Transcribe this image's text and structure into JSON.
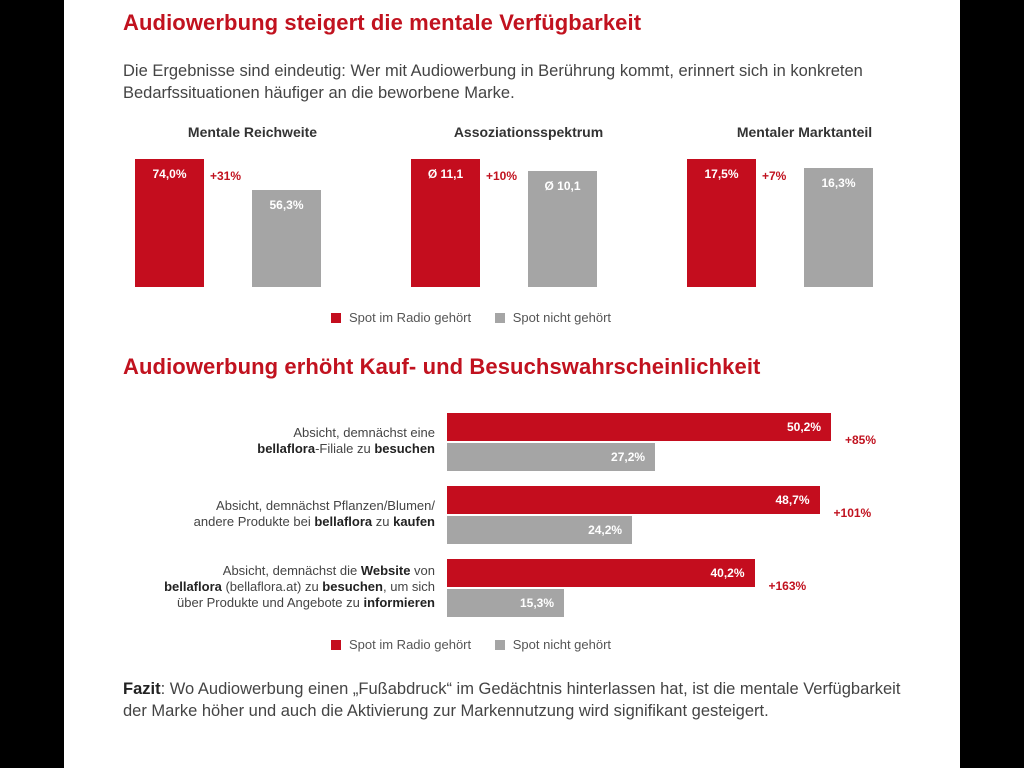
{
  "section1": {
    "title": "Audiowerbung steigert die mentale Verfügbarkeit",
    "intro": "Die Ergebnisse sind eindeutig: Wer mit Audiowerbung in Berührung kommt, erinnert sich in konkreten Bedarfssituationen häufiger an die beworbene Marke."
  },
  "section2": {
    "title": "Audiowerbung erhöht Kauf- und Besuchswahrscheinlichkeit"
  },
  "legend": {
    "heard": "Spot im Radio gehört",
    "not_heard": "Spot nicht gehört"
  },
  "colors": {
    "accent": "#c1121f",
    "red": "#c40d1e",
    "grey": "#a5a5a5"
  },
  "chart_data": [
    {
      "type": "bar",
      "title": "Mentale Reichweite",
      "categories": [
        "Spot im Radio gehört",
        "Spot nicht gehört"
      ],
      "values": [
        74.0,
        56.3
      ],
      "value_labels": [
        "74,0%",
        "56,3%"
      ],
      "delta": "+31%"
    },
    {
      "type": "bar",
      "title": "Assoziationsspektrum",
      "categories": [
        "Spot im Radio gehört",
        "Spot nicht gehört"
      ],
      "values": [
        11.1,
        10.1
      ],
      "value_labels": [
        "Ø 11,1",
        "Ø 10,1"
      ],
      "delta": "+10%"
    },
    {
      "type": "bar",
      "title": "Mentaler Marktanteil",
      "categories": [
        "Spot im Radio gehört",
        "Spot nicht gehört"
      ],
      "values": [
        17.5,
        16.3
      ],
      "value_labels": [
        "17,5%",
        "16,3%"
      ],
      "delta": "+7%"
    },
    {
      "type": "bar",
      "orientation": "horizontal",
      "rows": [
        {
          "label_parts": [
            {
              "t": "Absicht, demnächst eine",
              "b": false
            },
            {
              "br": true
            },
            {
              "t": "bellaflora",
              "b": true
            },
            {
              "t": "-Filiale zu ",
              "b": false
            },
            {
              "t": "besuchen",
              "b": true
            }
          ],
          "heard": 50.2,
          "heard_label": "50,2%",
          "not_heard": 27.2,
          "not_heard_label": "27,2%",
          "delta": "+85%"
        },
        {
          "label_parts": [
            {
              "t": "Absicht, demnächst Pflanzen/Blumen/",
              "b": false
            },
            {
              "br": true
            },
            {
              "t": "andere Produkte bei ",
              "b": false
            },
            {
              "t": "bellaflora",
              "b": true
            },
            {
              "t": " zu ",
              "b": false
            },
            {
              "t": "kaufen",
              "b": true
            }
          ],
          "heard": 48.7,
          "heard_label": "48,7%",
          "not_heard": 24.2,
          "not_heard_label": "24,2%",
          "delta": "+101%"
        },
        {
          "label_parts": [
            {
              "t": "Absicht, demnächst die ",
              "b": false
            },
            {
              "t": "Website",
              "b": true
            },
            {
              "t": " von",
              "b": false
            },
            {
              "br": true
            },
            {
              "t": "bellaflora",
              "b": true
            },
            {
              "t": " (bellaflora.at) zu ",
              "b": false
            },
            {
              "t": "besuchen",
              "b": true
            },
            {
              "t": ", um sich",
              "b": false
            },
            {
              "br": true
            },
            {
              "t": "über Produkte und Angebote zu ",
              "b": false
            },
            {
              "t": "informieren",
              "b": true
            }
          ],
          "heard": 40.2,
          "heard_label": "40,2%",
          "not_heard": 15.3,
          "not_heard_label": "15,3%",
          "delta": "+163%"
        }
      ]
    }
  ],
  "fazit": {
    "label": "Fazit",
    "text": ": Wo Audiowerbung einen „Fußabdruck“ im Gedächtnis hinterlassen hat, ist die mentale Verfügbarkeit der Marke höher und auch die Aktivierung zur Markennutzung wird signifikant gesteigert."
  }
}
